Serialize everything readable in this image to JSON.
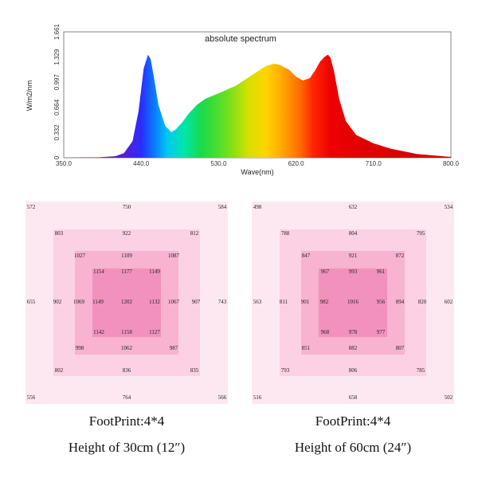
{
  "colors": {
    "ring_outer": "#fde8f1",
    "ring_2": "#fbd1e3",
    "ring_3": "#f7b3d0",
    "ring_inner": "#f291bd"
  },
  "chart_data": [
    {
      "type": "area",
      "title": "absolute spectrum",
      "xlabel": "Wave(nm)",
      "ylabel": "W/m2/nm",
      "xlim": [
        350,
        800
      ],
      "ylim": [
        0,
        1.661
      ],
      "xticks": [
        "350.0",
        "440.0",
        "530.0",
        "620.0",
        "710.0",
        "800.0"
      ],
      "yticks": [
        "0",
        "0.332",
        "0.664",
        "0.997",
        "1.329",
        "1.661"
      ],
      "x": [
        350,
        390,
        410,
        420,
        430,
        437,
        443,
        448,
        451,
        455,
        460,
        468,
        475,
        480,
        488,
        495,
        505,
        515,
        530,
        550,
        570,
        585,
        595,
        602,
        612,
        620,
        628,
        636,
        642,
        648,
        653,
        657,
        660,
        664,
        670,
        678,
        690,
        710,
        730,
        760,
        800
      ],
      "y": [
        0,
        0.005,
        0.02,
        0.06,
        0.22,
        0.62,
        1.18,
        1.36,
        1.3,
        1.05,
        0.7,
        0.42,
        0.34,
        0.37,
        0.47,
        0.58,
        0.7,
        0.78,
        0.85,
        0.95,
        1.1,
        1.21,
        1.24,
        1.22,
        1.16,
        1.07,
        1.02,
        1.05,
        1.15,
        1.27,
        1.33,
        1.36,
        1.32,
        1.15,
        0.78,
        0.48,
        0.3,
        0.19,
        0.12,
        0.05,
        0.01
      ]
    },
    {
      "type": "heatmap",
      "title": "FootPrint:4*4",
      "subtitle": "Height of 30cm (12″)",
      "values": [
        [
          "572",
          "750",
          "584"
        ],
        [
          "803",
          "922",
          "812"
        ],
        [
          "1027",
          "1109",
          "1087"
        ],
        [
          "1154",
          "1177",
          "1149"
        ],
        [
          "655",
          "902",
          "1069",
          "1149",
          "1202",
          "1132",
          "1067",
          "907",
          "743"
        ],
        [
          "1142",
          "1158",
          "1127"
        ],
        [
          "998",
          "1062",
          "987"
        ],
        [
          "802",
          "836",
          "835"
        ],
        [
          "556",
          "764",
          "566"
        ]
      ]
    },
    {
      "type": "heatmap",
      "title": "FootPrint:4*4",
      "subtitle": "Height of 60cm (24″)",
      "values": [
        [
          "498",
          "632",
          "534"
        ],
        [
          "788",
          "804",
          "795"
        ],
        [
          "847",
          "921",
          "872"
        ],
        [
          "967",
          "993",
          "961"
        ],
        [
          "563",
          "811",
          "901",
          "982",
          "1016",
          "956",
          "894",
          "820",
          "602"
        ],
        [
          "968",
          "978",
          "977"
        ],
        [
          "851",
          "882",
          "807"
        ],
        [
          "793",
          "806",
          "785"
        ],
        [
          "516",
          "658",
          "502"
        ]
      ]
    }
  ]
}
